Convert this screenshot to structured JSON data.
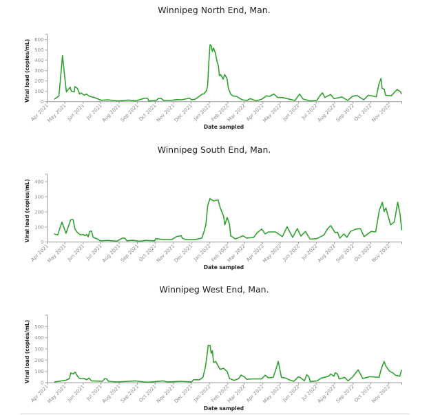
{
  "chart_data": [
    {
      "type": "line",
      "title": "Winnipeg North End, Man.",
      "xlabel": "Date sampled",
      "ylabel": "Viral load (copies/mL)",
      "x_unit": "days since 2021-04-01",
      "x_origin": "2021-04-01",
      "xlim": [
        0,
        601
      ],
      "ylim": [
        0,
        650
      ],
      "yticks": [
        0,
        100,
        200,
        300,
        400,
        500,
        600
      ],
      "xticks": [
        "Apr 2021",
        "May 2021",
        "Jun 2021",
        "Jul 2021",
        "Aug 2021",
        "Sep 2021",
        "Oct 2021",
        "Nov 2021",
        "Dec 2021",
        "Jan 2022",
        "Feb 2022",
        "Mar 2022",
        "Apr 2022",
        "May 2022",
        "Jun 2022",
        "Jul 2022",
        "Aug 2022",
        "Sep 2022",
        "Oct 2022",
        "Nov 2022"
      ],
      "grid": false,
      "color": "#2ea12e",
      "x": [
        12,
        20,
        26,
        29.5,
        32.6,
        39,
        41,
        46,
        47,
        51,
        55,
        57.5,
        62.5,
        66,
        72,
        80,
        92,
        103,
        119,
        138,
        150,
        165,
        170,
        172,
        185,
        188,
        193,
        197,
        208,
        220,
        228,
        241,
        245,
        251,
        263,
        266,
        270,
        272,
        274,
        276,
        278,
        280,
        282,
        285,
        288,
        290,
        292,
        294,
        298,
        301,
        305,
        307,
        311,
        315,
        321,
        327,
        330.6,
        338.4,
        344.2,
        353.9,
        363.6,
        371.4,
        377.2,
        384.2,
        390.8,
        398.6,
        406.4,
        420,
        427.7,
        433.6,
        445.2,
        456.9,
        462.7,
        466.6,
        470.5,
        480.2,
        486,
        499.6,
        509.3,
        517.1,
        524.9,
        536.5,
        544.3,
        557.9,
        561.8,
        565.7,
        567.6,
        571.5,
        573.4,
        583.1,
        592.9,
        598.7,
        600.6
      ],
      "y": [
        22,
        55,
        445,
        250,
        95,
        140,
        100,
        95,
        145,
        130,
        73,
        85,
        62,
        73,
        51,
        40,
        13,
        18,
        7,
        15,
        7,
        33,
        33,
        7,
        11,
        29,
        33,
        11,
        11,
        20,
        18,
        33,
        18,
        24,
        73,
        78,
        107,
        162,
        385,
        550,
        540,
        485,
        518,
        473,
        385,
        351,
        251,
        262,
        218,
        262,
        218,
        129,
        73,
        55,
        51,
        29,
        18,
        11,
        29,
        7,
        24,
        56,
        51,
        74,
        40,
        40,
        29,
        11,
        74,
        25,
        7,
        11,
        62,
        85,
        40,
        69,
        29,
        45,
        11,
        51,
        60,
        18,
        62,
        47,
        162,
        224,
        129,
        118,
        62,
        56,
        118,
        96,
        73
      ]
    },
    {
      "type": "line",
      "title": "Winnipeg South End, Man.",
      "xlabel": "Date sampled",
      "ylabel": "Viral load (copies/mL)",
      "x_unit": "days since 2021-04-01",
      "x_origin": "2021-04-01",
      "xlim": [
        0,
        601
      ],
      "ylim": [
        0,
        450
      ],
      "yticks": [
        0,
        100,
        200,
        300,
        400
      ],
      "xticks": [
        "Apr 2021",
        "May 2021",
        "Jun 2021",
        "Jul 2021",
        "Aug 2021",
        "Sep 2021",
        "Oct 2021",
        "Nov 2021",
        "Dec 2021",
        "Jan 2022",
        "Feb 2022",
        "Mar 2022",
        "Apr 2022",
        "May 2022",
        "Jun 2022",
        "Jul 2022",
        "Aug 2022",
        "Sep 2022",
        "Oct 2022",
        "Nov 2022"
      ],
      "grid": false,
      "color": "#2ea12e",
      "x": [
        11.7,
        18,
        25,
        32,
        40,
        44,
        47,
        51.5,
        57,
        61,
        64,
        67,
        69.5,
        72,
        75,
        78,
        85,
        90.5,
        102,
        118,
        127.5,
        131.5,
        135,
        145,
        157,
        166.5,
        182,
        184,
        190,
        196,
        211,
        219,
        227,
        229,
        235,
        250,
        262,
        266,
        269,
        272,
        276,
        282,
        289.5,
        293.4,
        299,
        301,
        305,
        309,
        311,
        319,
        332,
        338,
        350,
        356,
        363.6,
        369.5,
        375,
        387,
        398.7,
        406.5,
        416,
        424,
        430,
        437.7,
        445.5,
        457,
        469,
        474.8,
        480.6,
        488,
        492,
        496,
        503,
        508,
        514,
        523.5,
        531,
        537,
        549,
        556.7,
        563,
        568,
        571,
        574,
        582,
        588,
        590,
        594,
        598,
        601
      ],
      "y": [
        54,
        47,
        132,
        58,
        148,
        148,
        86,
        62,
        47,
        51,
        42,
        50,
        34,
        70,
        73,
        31,
        20,
        8,
        11,
        6,
        26,
        26,
        8,
        12,
        5,
        11,
        8,
        23,
        20,
        16,
        16,
        36,
        42,
        26,
        16,
        16,
        26,
        70,
        117,
        241,
        288,
        272,
        280,
        226,
        171,
        114,
        163,
        117,
        42,
        20,
        42,
        26,
        31,
        62,
        86,
        54,
        67,
        67,
        36,
        101,
        31,
        89,
        39,
        70,
        19,
        23,
        47,
        86,
        109,
        62,
        65,
        26,
        54,
        31,
        70,
        86,
        89,
        36,
        70,
        67,
        210,
        264,
        202,
        226,
        114,
        132,
        171,
        264,
        187,
        78
      ]
    },
    {
      "type": "line",
      "title": "Winnipeg West End, Man.",
      "xlabel": "Date sampled",
      "ylabel": "Viral load (copies/mL)",
      "x_unit": "days since 2021-04-01",
      "x_origin": "2021-04-01",
      "xlim": [
        0,
        601
      ],
      "ylim": [
        0,
        600
      ],
      "yticks": [
        0,
        100,
        200,
        300,
        400,
        500
      ],
      "xticks": [
        "Apr 2021",
        "May 2021",
        "Jun 2021",
        "Jul 2021",
        "Aug 2021",
        "Sep 2021",
        "Oct 2021",
        "Nov 2021",
        "Dec 2021",
        "Jan 2022",
        "Feb 2022",
        "Mar 2022",
        "Apr 2022",
        "May 2022",
        "Jun 2022",
        "Jul 2022",
        "Aug 2022",
        "Sep 2022",
        "Oct 2022",
        "Nov 2022"
      ],
      "grid": false,
      "color": "#2ea12e",
      "x": [
        12,
        32,
        38,
        40,
        44,
        47.6,
        51.5,
        55,
        63,
        67,
        71,
        75,
        94,
        97.5,
        101,
        104,
        118,
        149,
        165,
        172,
        196,
        204,
        227,
        244.5,
        248,
        258,
        264,
        268,
        270,
        273,
        276,
        278,
        280,
        282,
        285.6,
        293,
        299,
        305,
        309,
        317,
        324.6,
        328.5,
        334,
        338,
        348,
        363.6,
        369.5,
        375,
        383,
        387,
        391.7,
        397,
        404.5,
        410,
        418,
        426,
        430,
        436,
        440,
        443.5,
        446,
        457,
        465,
        477,
        480.6,
        486,
        488,
        492,
        495,
        504,
        510,
        517.6,
        527,
        535,
        547,
        562.5,
        566,
        571,
        574,
        580,
        586,
        590,
        597.6,
        600.7
      ],
      "y": [
        6,
        22,
        37,
        87,
        77,
        94,
        57,
        37,
        37,
        26,
        41,
        16,
        12,
        37,
        33,
        12,
        6,
        16,
        6,
        4,
        16,
        6,
        12,
        6,
        26,
        26,
        47,
        138,
        209,
        331,
        331,
        260,
        285,
        179,
        189,
        118,
        128,
        98,
        37,
        20,
        37,
        67,
        53,
        30,
        33,
        33,
        67,
        43,
        47,
        108,
        189,
        47,
        41,
        26,
        12,
        53,
        41,
        16,
        71,
        53,
        10,
        16,
        41,
        57,
        77,
        57,
        87,
        77,
        33,
        47,
        16,
        51,
        114,
        37,
        53,
        47,
        118,
        189,
        148,
        102,
        87,
        67,
        57,
        114
      ]
    }
  ]
}
